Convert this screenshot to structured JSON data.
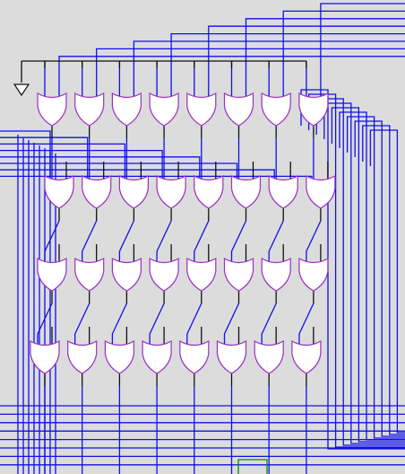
{
  "diagram": {
    "kind": "logic-schematic",
    "gate_symbol": "or-gate",
    "gate_rows": 4,
    "gates_per_row": 8,
    "colors": {
      "background": "#dcdcdc",
      "gate_outline": "#9a2fc2",
      "gate_fill": "#ffffff",
      "wire_primary": "#1010e8",
      "wire_common": "#101010",
      "wire_aux": "#0a8a0a"
    },
    "icons": {
      "gate": "or-gate-icon",
      "ground": "ground-icon"
    }
  }
}
